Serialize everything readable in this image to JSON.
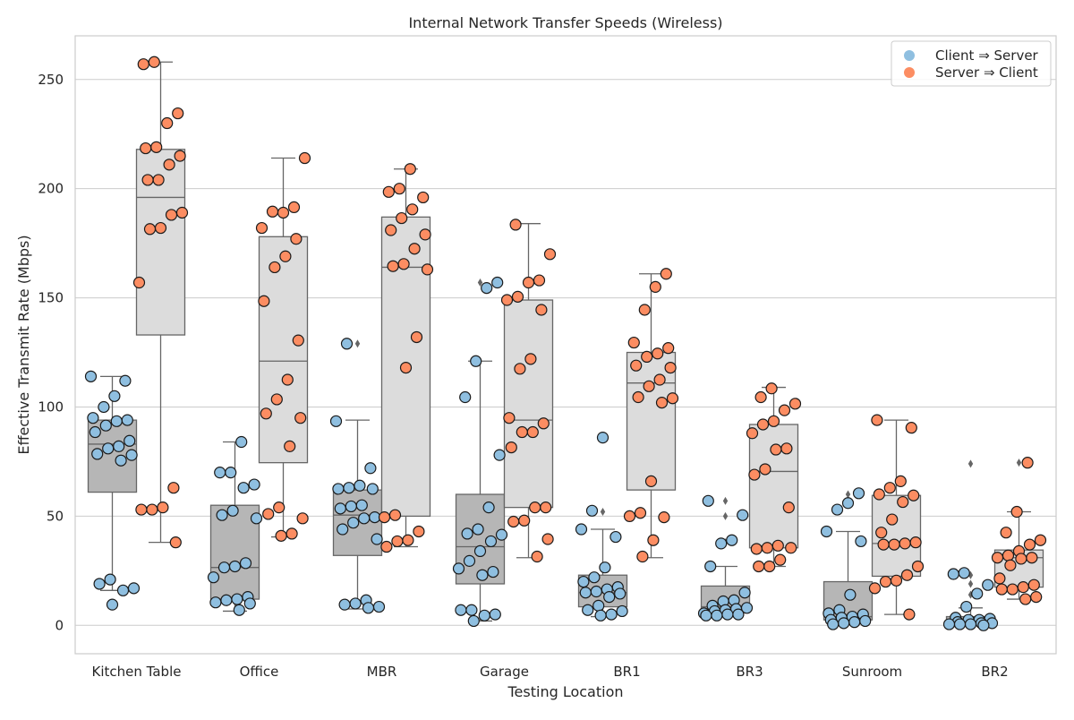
{
  "chart_data": {
    "type": "box",
    "title": "Internal Network Transfer Speeds (Wireless)",
    "xlabel": "Testing Location",
    "ylabel": "Effective Transmit Rate (Mbps)",
    "ylim": [
      -13,
      270
    ],
    "yticks": [
      0,
      50,
      100,
      150,
      200,
      250
    ],
    "grid": "horizontal",
    "legend_position": "top-right",
    "categories": [
      "Kitchen Table",
      "Office",
      "MBR",
      "Garage",
      "BR1",
      "BR3",
      "Sunroom",
      "BR2"
    ],
    "series": [
      {
        "name": "Client ⇒ Server",
        "point_color": "#8fbfe0",
        "box_color": "#b6b6b6",
        "boxes": [
          {
            "q1": 61,
            "median": 83,
            "q3": 94,
            "whislo": 16,
            "whishi": 114,
            "fliers": [
              9
            ]
          },
          {
            "q1": 12,
            "median": 26.5,
            "q3": 55,
            "whislo": 6.5,
            "whishi": 84,
            "fliers": []
          },
          {
            "q1": 32,
            "median": 50.5,
            "q3": 62,
            "whislo": 7.5,
            "whishi": 94,
            "fliers": [
              129
            ]
          },
          {
            "q1": 19,
            "median": 36,
            "q3": 60,
            "whislo": 2,
            "whishi": 121,
            "fliers": [
              157
            ]
          },
          {
            "q1": 8.5,
            "median": 15,
            "q3": 23,
            "whislo": 4,
            "whishi": 44,
            "fliers": [
              52,
              86
            ]
          },
          {
            "q1": 6,
            "median": 8.5,
            "q3": 18,
            "whislo": 4,
            "whishi": 27,
            "fliers": [
              38,
              50,
              57
            ]
          },
          {
            "q1": 2.5,
            "median": 4,
            "q3": 20,
            "whislo": 0.5,
            "whishi": 43,
            "fliers": [
              56,
              60
            ]
          },
          {
            "q1": 0.5,
            "median": 1.5,
            "q3": 4,
            "whislo": 0,
            "whishi": 8,
            "fliers": [
              14,
              19,
              23,
              74
            ]
          }
        ],
        "points": [
          [
            114,
            112,
            105,
            100,
            95,
            94,
            93.5,
            91.5,
            88.5,
            84.5,
            82,
            81,
            78.5,
            78,
            75.5,
            21,
            19,
            17,
            16,
            9.5
          ],
          [
            84,
            70,
            70,
            64.5,
            63,
            52.5,
            50.5,
            49,
            28.5,
            27,
            26.5,
            22,
            13,
            12,
            11.5,
            10.5,
            10,
            7
          ],
          [
            129,
            93.5,
            72,
            64,
            63,
            62.5,
            62.5,
            55,
            54.5,
            53.5,
            49.5,
            49,
            47,
            44,
            39.5,
            11.5,
            10,
            9.5,
            8.5,
            8
          ],
          [
            157,
            154.5,
            121,
            104.5,
            78,
            54,
            44,
            42,
            41.5,
            38.5,
            34,
            29.5,
            26,
            24.5,
            23,
            7,
            7,
            5,
            4.5,
            2
          ],
          [
            86,
            52.5,
            44,
            40.5,
            26.5,
            22,
            20,
            17.5,
            16.5,
            15.5,
            15,
            14.5,
            13,
            9,
            7,
            6.5,
            5,
            4.5
          ],
          [
            57,
            50.5,
            39,
            37.5,
            27,
            15,
            11.5,
            11,
            9,
            8,
            7.5,
            7,
            6.5,
            5.5,
            5,
            5,
            4.5,
            4.5
          ],
          [
            60.5,
            56,
            53,
            43,
            38.5,
            14,
            7,
            5.5,
            5,
            4,
            3.5,
            2.5,
            2,
            1.5,
            1,
            0.5
          ],
          [
            24,
            23.5,
            18.5,
            14.5,
            8.5,
            3.5,
            3,
            2.5,
            2.5,
            1.5,
            1,
            1,
            0.5,
            0.5,
            0.5,
            0
          ]
        ]
      },
      {
        "name": "Server ⇒ Client",
        "point_color": "#fc8d62",
        "box_color": "#dcdcdc",
        "boxes": [
          {
            "q1": 133,
            "median": 196,
            "q3": 218,
            "whislo": 38,
            "whishi": 258,
            "fliers": []
          },
          {
            "q1": 74.5,
            "median": 121,
            "q3": 178,
            "whislo": 40.5,
            "whishi": 214,
            "fliers": []
          },
          {
            "q1": 50,
            "median": 164,
            "q3": 187,
            "whislo": 36,
            "whishi": 209,
            "fliers": []
          },
          {
            "q1": 54,
            "median": 94,
            "q3": 149,
            "whislo": 31,
            "whishi": 184,
            "fliers": []
          },
          {
            "q1": 62,
            "median": 111,
            "q3": 125,
            "whislo": 31,
            "whishi": 161,
            "fliers": []
          },
          {
            "q1": 35.5,
            "median": 70.5,
            "q3": 92,
            "whislo": 27,
            "whishi": 109,
            "fliers": []
          },
          {
            "q1": 22.5,
            "median": 37.5,
            "q3": 59.5,
            "whislo": 5,
            "whishi": 94,
            "fliers": []
          },
          {
            "q1": 17.5,
            "median": 31,
            "q3": 34.5,
            "whislo": 12,
            "whishi": 52,
            "fliers": [
              74.5
            ]
          }
        ],
        "points": [
          [
            258,
            257,
            234.5,
            230,
            219,
            218.5,
            215,
            211,
            204,
            204,
            189,
            188,
            182,
            181.5,
            157,
            63,
            54,
            53,
            53,
            38
          ],
          [
            214,
            191.5,
            189,
            189.5,
            182,
            177,
            169,
            164,
            148.5,
            130.5,
            112.5,
            103.5,
            97,
            95,
            82,
            54,
            51,
            49,
            42,
            41
          ],
          [
            209,
            200,
            198.5,
            196,
            190.5,
            186.5,
            181,
            179,
            172.5,
            165.5,
            164.5,
            163,
            132,
            118,
            50.5,
            49.5,
            43,
            39,
            38.5,
            36
          ],
          [
            183.5,
            170,
            158,
            157,
            150.5,
            149,
            144.5,
            122,
            117.5,
            95,
            92.5,
            88.5,
            88.5,
            81.5,
            54,
            54,
            48,
            47.5,
            39.5,
            31.5
          ],
          [
            161,
            155,
            144.5,
            129.5,
            127,
            124.5,
            123,
            119,
            118,
            112.5,
            109.5,
            104.5,
            104,
            102,
            66,
            51.5,
            50,
            49.5,
            39,
            31.5
          ],
          [
            108.5,
            104.5,
            101.5,
            98.5,
            93.5,
            92,
            88,
            81,
            80.5,
            71.5,
            69,
            54,
            36.5,
            35.5,
            35,
            35.5,
            30,
            27,
            27
          ],
          [
            94,
            90.5,
            66,
            63,
            60,
            59.5,
            56.5,
            48.5,
            42.5,
            38,
            37.5,
            37,
            37,
            27,
            23,
            20.5,
            20,
            17,
            5
          ],
          [
            74.5,
            52,
            42.5,
            39,
            37,
            34,
            32,
            31,
            31,
            30.5,
            27.5,
            21.5,
            18.5,
            17.5,
            16.5,
            16.5,
            13,
            12
          ]
        ]
      }
    ]
  }
}
